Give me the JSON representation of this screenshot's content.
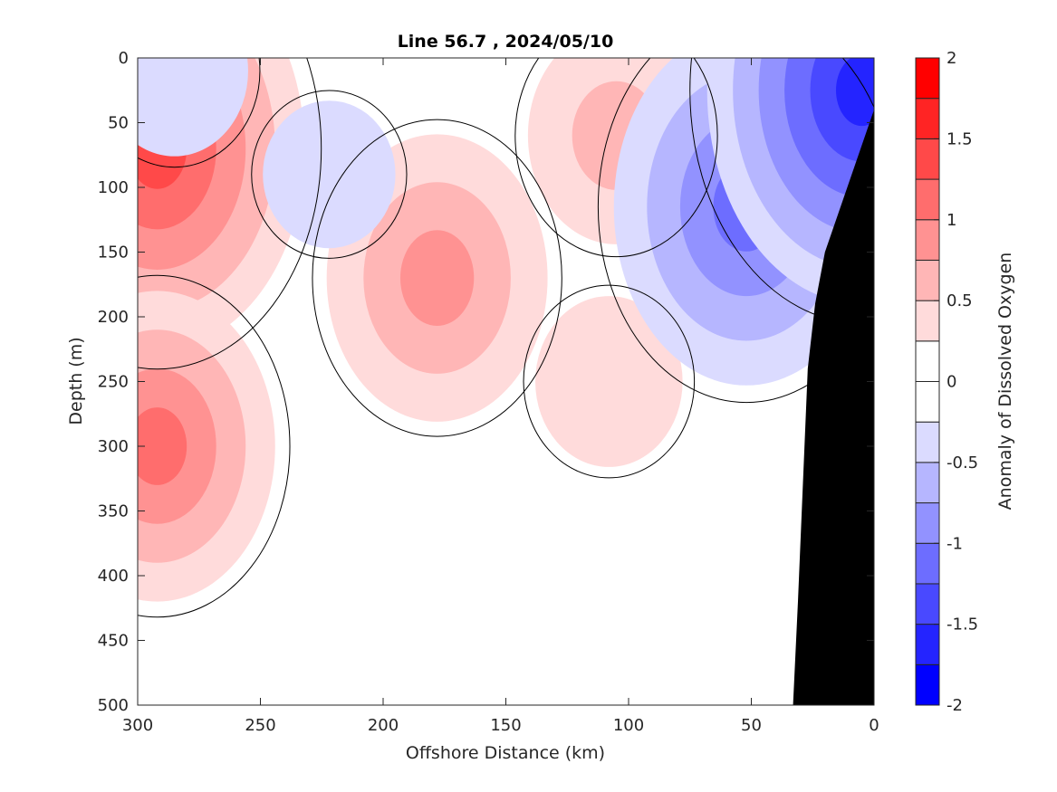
{
  "chart_data": {
    "type": "heatmap",
    "title": "Line 56.7 , 2024/05/10",
    "xlabel": "Offshore Distance (km)",
    "ylabel": "Depth (m)",
    "colorbar_label": "Anomaly of Dissolved Oxygen",
    "x_reversed": true,
    "y_reversed": true,
    "xlim": [
      0,
      300
    ],
    "ylim": [
      0,
      500
    ],
    "x_ticks": [
      300,
      250,
      200,
      150,
      100,
      50,
      0
    ],
    "y_ticks": [
      0,
      50,
      100,
      150,
      200,
      250,
      300,
      350,
      400,
      450,
      500
    ],
    "colorbar_ticks": [
      {
        "value": 2,
        "label": "2"
      },
      {
        "value": 1.5,
        "label": "1.5"
      },
      {
        "value": 1,
        "label": "1"
      },
      {
        "value": 0.5,
        "label": "0.5"
      },
      {
        "value": 0,
        "label": "0"
      },
      {
        "value": -0.5,
        "label": "-0.5"
      },
      {
        "value": -1,
        "label": "-1"
      },
      {
        "value": -1.5,
        "label": "-1.5"
      },
      {
        "value": -2,
        "label": "-2"
      }
    ],
    "clim": [
      -2,
      2
    ],
    "contour_step": 0.25,
    "zero_contour": true,
    "bathymetry_color": "#000000",
    "colors": {
      "max_positive": "#ff0000",
      "max_negative": "#0000ff",
      "neutral": "#ffffff"
    },
    "features": [
      {
        "kind": "positive",
        "value": 1.4,
        "x_km": 292,
        "depth_m": 70
      },
      {
        "kind": "positive",
        "value": 1.0,
        "x_km": 292,
        "depth_m": 300
      },
      {
        "kind": "positive",
        "value": 0.9,
        "x_km": 178,
        "depth_m": 170
      },
      {
        "kind": "positive",
        "value": 0.6,
        "x_km": 105,
        "depth_m": 60
      },
      {
        "kind": "positive",
        "value": 0.4,
        "x_km": 108,
        "depth_m": 250
      },
      {
        "kind": "negative",
        "value": -1.2,
        "x_km": 52,
        "depth_m": 115
      },
      {
        "kind": "negative",
        "value": -1.5,
        "x_km": 5,
        "depth_m": 25
      },
      {
        "kind": "negative",
        "value": -0.4,
        "x_km": 285,
        "depth_m": 10
      },
      {
        "kind": "negative",
        "value": -0.3,
        "x_km": 222,
        "depth_m": 90
      }
    ],
    "bathymetry": [
      [
        0,
        40
      ],
      [
        10,
        95
      ],
      [
        20,
        150
      ],
      [
        24,
        190
      ],
      [
        27,
        240
      ],
      [
        29,
        330
      ],
      [
        31,
        420
      ],
      [
        33,
        500
      ],
      [
        0,
        500
      ]
    ]
  }
}
